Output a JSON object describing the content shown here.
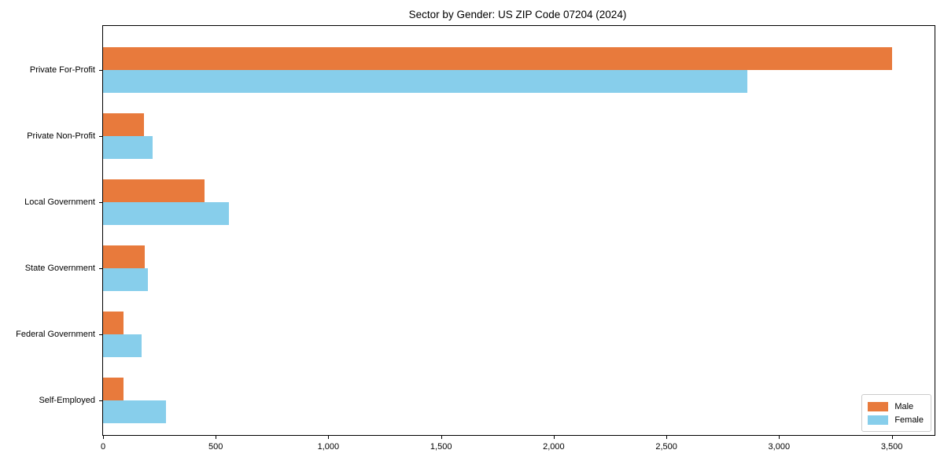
{
  "chart_data": {
    "type": "bar",
    "orientation": "horizontal",
    "title": "Sector by Gender: US ZIP Code 07204 (2024)",
    "categories": [
      "Private For-Profit",
      "Private Non-Profit",
      "Local Government",
      "State Government",
      "Federal Government",
      "Self-Employed"
    ],
    "series": [
      {
        "name": "Male",
        "color": "#e87a3c",
        "values": [
          3500,
          180,
          450,
          185,
          90,
          90
        ]
      },
      {
        "name": "Female",
        "color": "#87ceeb",
        "values": [
          2860,
          220,
          560,
          200,
          170,
          280
        ]
      }
    ],
    "xlabel": "",
    "ylabel": "",
    "xlim": [
      0,
      3690
    ],
    "xticks": [
      0,
      500,
      1000,
      1500,
      2000,
      2500,
      3000,
      3500
    ],
    "xtick_labels": [
      "0",
      "500",
      "1,000",
      "1,500",
      "2,000",
      "2,500",
      "3,000",
      "3,500"
    ],
    "legend_position": "lower right",
    "grid": false
  }
}
